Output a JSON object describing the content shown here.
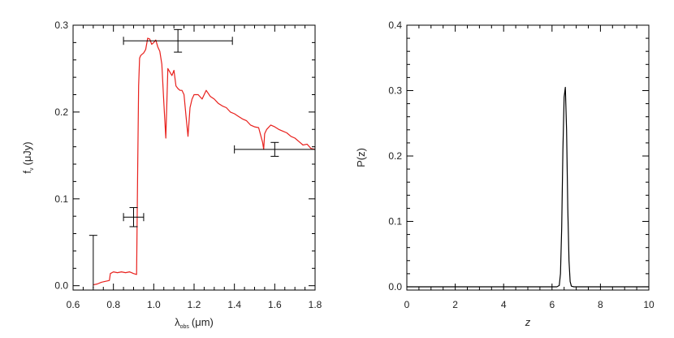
{
  "chart_data": [
    {
      "type": "line",
      "xlabel_main": "λ",
      "xlabel_sub": "obs",
      "xlabel_unit": "(μm)",
      "ylabel_main": "f",
      "ylabel_sub": "ν",
      "ylabel_unit": "(μJy)",
      "xlim": [
        0.6,
        1.8
      ],
      "ylim": [
        -0.005,
        0.3
      ],
      "xticks": [
        "0.6",
        "0.8",
        "1.0",
        "1.2",
        "1.4",
        "1.6",
        "1.8"
      ],
      "xtick_values": [
        0.6,
        0.8,
        1.0,
        1.2,
        1.4,
        1.6,
        1.8
      ],
      "yticks": [
        "0.0",
        "0.1",
        "0.2",
        "0.3"
      ],
      "ytick_values": [
        0.0,
        0.1,
        0.2,
        0.3
      ],
      "grid": false,
      "series": [
        {
          "color": "#e8201c",
          "x": [
            0.7,
            0.72,
            0.74,
            0.76,
            0.78,
            0.785,
            0.8,
            0.82,
            0.84,
            0.86,
            0.88,
            0.9,
            0.915,
            0.92,
            0.925,
            0.93,
            0.935,
            0.94,
            0.95,
            0.96,
            0.97,
            0.98,
            0.99,
            1.0,
            1.01,
            1.02,
            1.03,
            1.04,
            1.05,
            1.06,
            1.07,
            1.08,
            1.09,
            1.1,
            1.11,
            1.12,
            1.13,
            1.14,
            1.15,
            1.16,
            1.17,
            1.18,
            1.19,
            1.2,
            1.22,
            1.24,
            1.26,
            1.28,
            1.3,
            1.32,
            1.34,
            1.36,
            1.38,
            1.4,
            1.42,
            1.44,
            1.46,
            1.48,
            1.5,
            1.52,
            1.54,
            1.545,
            1.55,
            1.56,
            1.58,
            1.6,
            1.62,
            1.64,
            1.66,
            1.68,
            1.7,
            1.72,
            1.74,
            1.76,
            1.78,
            1.8
          ],
          "y": [
            0.001,
            0.002,
            0.004,
            0.005,
            0.006,
            0.014,
            0.016,
            0.015,
            0.016,
            0.015,
            0.016,
            0.014,
            0.013,
            0.13,
            0.23,
            0.262,
            0.265,
            0.266,
            0.268,
            0.272,
            0.285,
            0.284,
            0.278,
            0.28,
            0.283,
            0.275,
            0.27,
            0.255,
            0.21,
            0.17,
            0.25,
            0.246,
            0.242,
            0.248,
            0.23,
            0.227,
            0.225,
            0.225,
            0.22,
            0.195,
            0.172,
            0.205,
            0.215,
            0.22,
            0.22,
            0.215,
            0.225,
            0.218,
            0.215,
            0.21,
            0.207,
            0.205,
            0.2,
            0.198,
            0.195,
            0.192,
            0.19,
            0.185,
            0.183,
            0.182,
            0.165,
            0.157,
            0.175,
            0.18,
            0.185,
            0.183,
            0.18,
            0.178,
            0.176,
            0.172,
            0.17,
            0.166,
            0.162,
            0.163,
            0.158,
            0.157
          ]
        }
      ],
      "errorbars": [
        {
          "x": 0.7,
          "y": -0.003,
          "yerr_low": 0.0,
          "yerr_high": 0.061,
          "xerr": 0.0
        },
        {
          "x": 0.9,
          "y": 0.079,
          "yerr_low": 0.011,
          "yerr_high": 0.011,
          "xerr": 0.05
        },
        {
          "x": 1.12,
          "y": 0.282,
          "yerr_low": 0.013,
          "yerr_high": 0.013,
          "xerr": 0.27
        },
        {
          "x": 1.6,
          "y": 0.157,
          "yerr_low": 0.008,
          "yerr_high": 0.008,
          "xerr": 0.2
        }
      ]
    },
    {
      "type": "line",
      "xlabel": "z",
      "ylabel": "P(z)",
      "xlim": [
        0,
        10
      ],
      "ylim": [
        -0.005,
        0.4
      ],
      "xticks": [
        "0",
        "2",
        "4",
        "6",
        "8",
        "10"
      ],
      "xtick_values": [
        0,
        2,
        4,
        6,
        8,
        10
      ],
      "yticks": [
        "0.0",
        "0.1",
        "0.2",
        "0.3",
        "0.4"
      ],
      "ytick_values": [
        0.0,
        0.1,
        0.2,
        0.3,
        0.4
      ],
      "grid": false,
      "series": [
        {
          "color": "#000000",
          "x": [
            0,
            6.2,
            6.3,
            6.35,
            6.4,
            6.45,
            6.5,
            6.55,
            6.6,
            6.65,
            6.7,
            6.75,
            6.8,
            6.9,
            10
          ],
          "y": [
            0,
            0,
            0.002,
            0.02,
            0.09,
            0.21,
            0.29,
            0.305,
            0.24,
            0.12,
            0.04,
            0.008,
            0.001,
            0,
            0
          ]
        }
      ]
    }
  ]
}
